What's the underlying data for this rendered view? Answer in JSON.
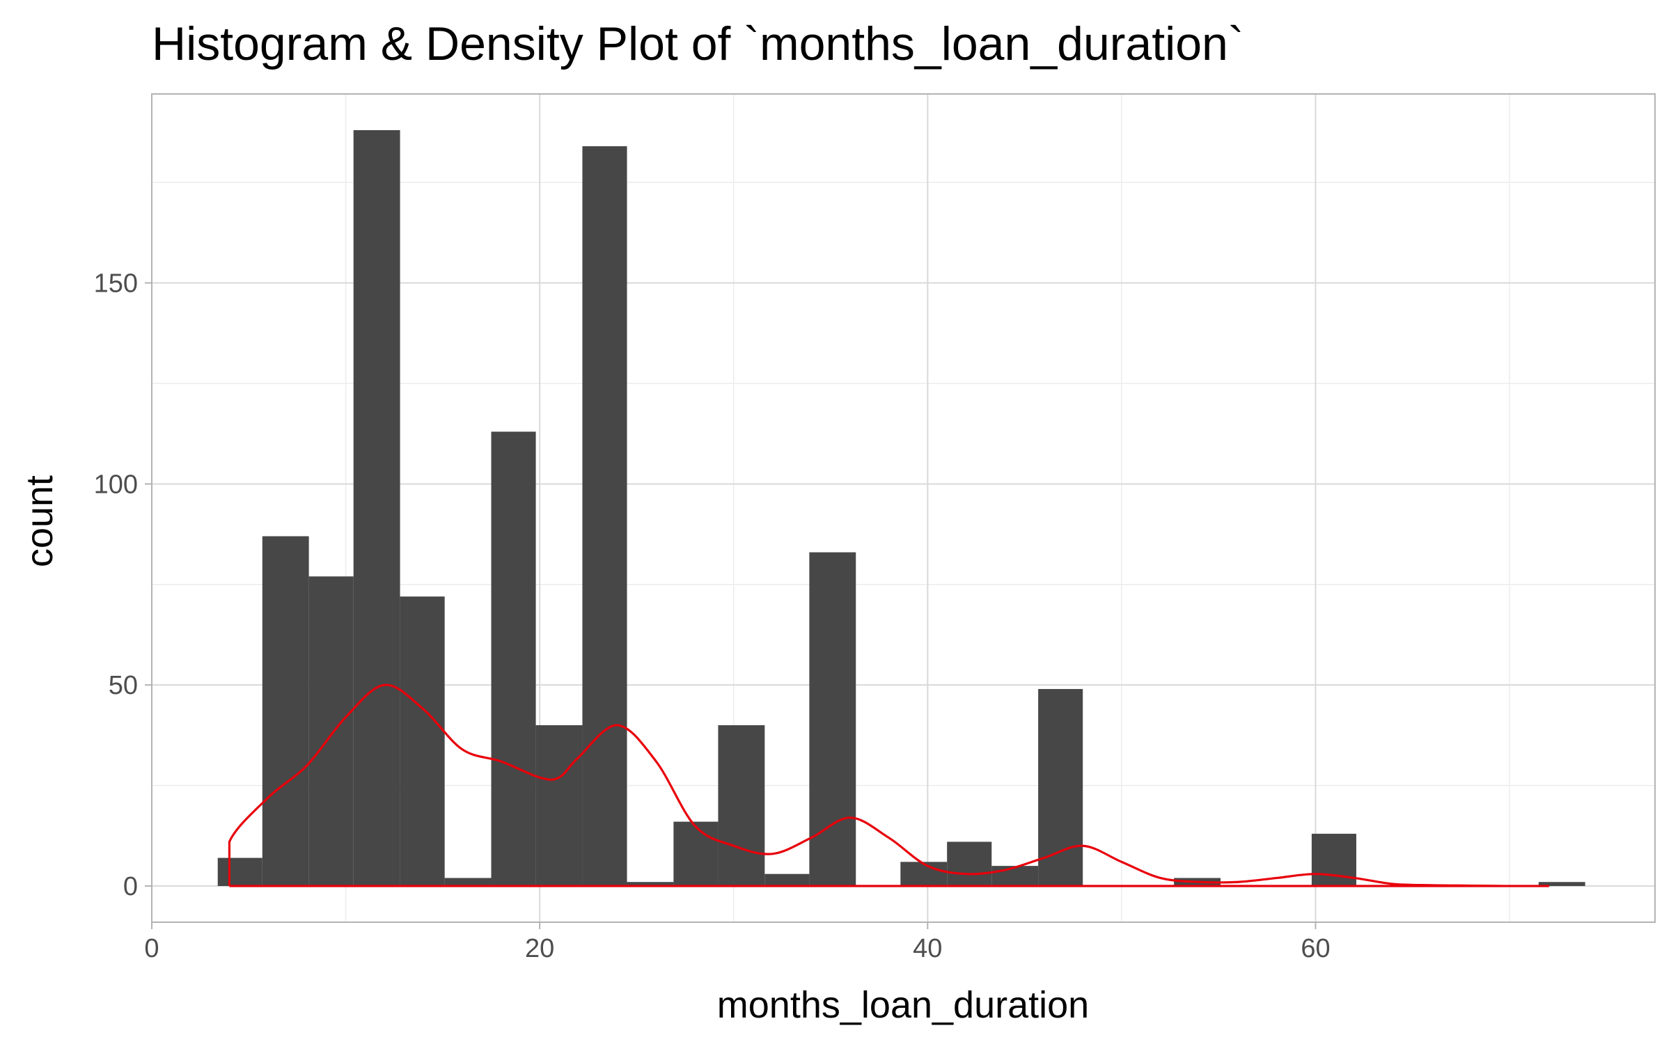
{
  "chart_data": {
    "type": "bar",
    "title": "Histogram & Density Plot of `months_loan_duration`",
    "xlabel": "months_loan_duration",
    "ylabel": "count",
    "xlim": [
      0,
      77.5
    ],
    "ylim": [
      -9,
      197
    ],
    "x_ticks": [
      0,
      20,
      40,
      60
    ],
    "y_ticks": [
      0,
      50,
      100,
      150
    ],
    "grid": true,
    "bin_width": 2.345,
    "bins": [
      {
        "x0": 3.4,
        "x1": 5.7,
        "count": 7
      },
      {
        "x0": 5.7,
        "x1": 8.1,
        "count": 87
      },
      {
        "x0": 8.1,
        "x1": 10.4,
        "count": 77
      },
      {
        "x0": 10.4,
        "x1": 12.8,
        "count": 188
      },
      {
        "x0": 12.8,
        "x1": 15.1,
        "count": 72
      },
      {
        "x0": 15.1,
        "x1": 17.5,
        "count": 2
      },
      {
        "x0": 17.5,
        "x1": 19.8,
        "count": 113
      },
      {
        "x0": 19.8,
        "x1": 22.2,
        "count": 40
      },
      {
        "x0": 22.2,
        "x1": 24.5,
        "count": 184
      },
      {
        "x0": 24.5,
        "x1": 26.9,
        "count": 1
      },
      {
        "x0": 26.9,
        "x1": 29.2,
        "count": 16
      },
      {
        "x0": 29.2,
        "x1": 31.6,
        "count": 40
      },
      {
        "x0": 31.6,
        "x1": 33.9,
        "count": 3
      },
      {
        "x0": 33.9,
        "x1": 36.3,
        "count": 83
      },
      {
        "x0": 36.3,
        "x1": 38.6,
        "count": 0
      },
      {
        "x0": 38.6,
        "x1": 41.0,
        "count": 6
      },
      {
        "x0": 41.0,
        "x1": 43.3,
        "count": 11
      },
      {
        "x0": 43.3,
        "x1": 45.7,
        "count": 5
      },
      {
        "x0": 45.7,
        "x1": 48.0,
        "count": 49
      },
      {
        "x0": 48.0,
        "x1": 50.4,
        "count": 0
      },
      {
        "x0": 50.4,
        "x1": 52.7,
        "count": 0
      },
      {
        "x0": 52.7,
        "x1": 55.1,
        "count": 2
      },
      {
        "x0": 55.1,
        "x1": 57.4,
        "count": 0
      },
      {
        "x0": 57.4,
        "x1": 59.8,
        "count": 0
      },
      {
        "x0": 59.8,
        "x1": 62.1,
        "count": 13
      },
      {
        "x0": 62.1,
        "x1": 64.5,
        "count": 0
      },
      {
        "x0": 64.5,
        "x1": 66.8,
        "count": 0
      },
      {
        "x0": 66.8,
        "x1": 69.2,
        "count": 0
      },
      {
        "x0": 69.2,
        "x1": 71.5,
        "count": 0
      },
      {
        "x0": 71.5,
        "x1": 73.9,
        "count": 1
      }
    ],
    "density_curve": {
      "x": [
        4,
        4,
        6,
        8,
        10,
        12,
        14,
        16,
        18,
        20,
        21,
        22,
        24,
        26,
        28,
        30,
        32,
        34,
        36,
        38,
        40,
        42,
        44,
        46,
        48,
        50,
        52,
        54,
        56,
        58,
        60,
        62,
        64,
        66,
        68,
        70,
        72,
        72,
        4
      ],
      "y": [
        0,
        11,
        22,
        30,
        42,
        50,
        44,
        34,
        31,
        27,
        27,
        32,
        40,
        31,
        15,
        10,
        8,
        12,
        17,
        12,
        5,
        3,
        4,
        7,
        10,
        6,
        2,
        1,
        1,
        2,
        3,
        2,
        0.5,
        0.2,
        0.1,
        0,
        0,
        0,
        0
      ]
    },
    "colors": {
      "bar_fill": "#474747",
      "density_line": "#e8000b",
      "grid_major": "#d9d9d9",
      "grid_minor": "#ececec",
      "panel_border": "#b3b3b3",
      "tick_text": "#4d4d4d"
    }
  }
}
